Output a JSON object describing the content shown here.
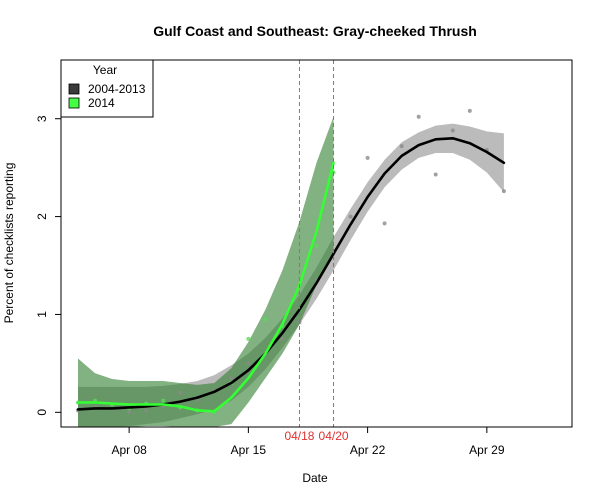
{
  "chart_data": {
    "type": "line",
    "title": "Gulf Coast and Southeast: Gray-cheeked Thrush",
    "xlabel": "Date",
    "ylabel": "Percent of checklists reporting",
    "xlim": [
      4.0,
      34.0
    ],
    "ylim": [
      -0.15,
      3.6
    ],
    "x_ticks": [
      {
        "x": 8,
        "label": "Apr 08"
      },
      {
        "x": 15,
        "label": "Apr 15"
      },
      {
        "x": 22,
        "label": "Apr 22"
      },
      {
        "x": 29,
        "label": "Apr 29"
      }
    ],
    "y_ticks": [
      {
        "y": 0,
        "label": "0"
      },
      {
        "y": 1,
        "label": "1"
      },
      {
        "y": 2,
        "label": "2"
      },
      {
        "y": 3,
        "label": "3"
      }
    ],
    "legend": {
      "title": "Year",
      "position": "top-left",
      "entries": [
        {
          "label": "2004-2013",
          "color": "#3a3a3a"
        },
        {
          "label": "2014",
          "color": "#44ff44"
        }
      ]
    },
    "reference_lines": [
      {
        "x": 18,
        "label": "04/18",
        "color": "#ff4444"
      },
      {
        "x": 20,
        "label": "04/20",
        "color": "#ff4444"
      }
    ],
    "series": [
      {
        "name": "2004-2013",
        "color": "#000000",
        "band_color": "#bbbbbb",
        "x": [
          5,
          6,
          7,
          8,
          9,
          10,
          11,
          12,
          13,
          14,
          15,
          16,
          17,
          18,
          19,
          20,
          21,
          22,
          23,
          24,
          25,
          26,
          27,
          28,
          29,
          30
        ],
        "y": [
          0.03,
          0.04,
          0.04,
          0.05,
          0.06,
          0.08,
          0.11,
          0.15,
          0.21,
          0.3,
          0.43,
          0.6,
          0.81,
          1.05,
          1.32,
          1.62,
          1.92,
          2.2,
          2.44,
          2.62,
          2.73,
          2.79,
          2.8,
          2.75,
          2.66,
          2.55
        ],
        "lower": [
          -0.2,
          -0.18,
          -0.16,
          -0.14,
          -0.12,
          -0.1,
          -0.06,
          -0.02,
          0.03,
          0.12,
          0.26,
          0.44,
          0.66,
          0.9,
          1.16,
          1.45,
          1.76,
          2.05,
          2.3,
          2.48,
          2.6,
          2.65,
          2.65,
          2.58,
          2.45,
          2.25
        ],
        "upper": [
          0.26,
          0.26,
          0.26,
          0.26,
          0.26,
          0.27,
          0.29,
          0.32,
          0.38,
          0.48,
          0.6,
          0.76,
          0.96,
          1.2,
          1.48,
          1.79,
          2.08,
          2.35,
          2.58,
          2.76,
          2.86,
          2.93,
          2.95,
          2.92,
          2.87,
          2.85
        ],
        "points": [
          [
            5,
            0.02
          ],
          [
            6,
            0.05
          ],
          [
            7,
            0.03
          ],
          [
            8,
            0.0
          ],
          [
            9,
            0.02
          ],
          [
            10,
            0.07
          ],
          [
            11,
            0.2
          ],
          [
            12,
            0.13
          ],
          [
            13,
            0.22
          ],
          [
            14,
            0.35
          ],
          [
            15,
            0.5
          ],
          [
            16,
            0.6
          ],
          [
            17,
            0.75
          ],
          [
            18,
            0.92
          ],
          [
            19,
            1.35
          ],
          [
            20,
            1.65
          ],
          [
            21,
            2.0
          ],
          [
            22,
            2.6
          ],
          [
            23,
            1.93
          ],
          [
            24,
            2.72
          ],
          [
            25,
            3.02
          ],
          [
            26,
            2.43
          ],
          [
            27,
            2.88
          ],
          [
            28,
            3.08
          ],
          [
            29,
            2.68
          ],
          [
            30,
            2.26
          ]
        ]
      },
      {
        "name": "2014",
        "color": "#33ff33",
        "band_color": "#2e7d2e",
        "band_opacity": 0.6,
        "x": [
          5,
          6,
          7,
          8,
          9,
          10,
          11,
          12,
          13,
          14,
          15,
          16,
          17,
          18,
          19,
          20
        ],
        "y": [
          0.1,
          0.1,
          0.09,
          0.08,
          0.08,
          0.08,
          0.06,
          0.02,
          0.01,
          0.15,
          0.35,
          0.6,
          0.9,
          1.3,
          1.85,
          2.55
        ],
        "lower": [
          -0.35,
          -0.2,
          -0.16,
          -0.15,
          -0.14,
          -0.14,
          -0.16,
          -0.18,
          -0.2,
          -0.12,
          0.1,
          0.35,
          0.6,
          0.9,
          1.3,
          1.6
        ],
        "upper": [
          0.55,
          0.4,
          0.34,
          0.32,
          0.32,
          0.32,
          0.3,
          0.28,
          0.3,
          0.45,
          0.72,
          1.05,
          1.45,
          1.95,
          2.55,
          3.02
        ],
        "points": [
          [
            5,
            0.1
          ],
          [
            6,
            0.12
          ],
          [
            7,
            0.08
          ],
          [
            8,
            0.04
          ],
          [
            9,
            0.09
          ],
          [
            10,
            0.12
          ],
          [
            11,
            0.05
          ],
          [
            12,
            0.02
          ],
          [
            13,
            0.0
          ],
          [
            14,
            0.3
          ],
          [
            15,
            0.75
          ],
          [
            16,
            0.95
          ],
          [
            17,
            0.88
          ],
          [
            18,
            1.05
          ],
          [
            19,
            1.7
          ],
          [
            20,
            2.45
          ]
        ]
      }
    ]
  }
}
